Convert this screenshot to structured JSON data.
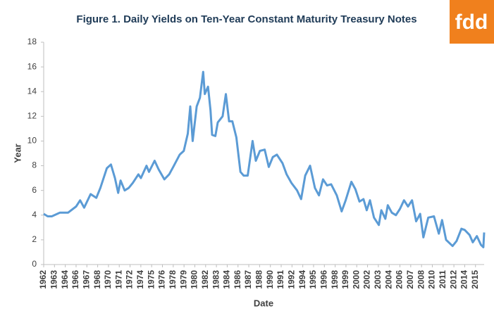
{
  "logo": "fdd",
  "chart_data": {
    "type": "line",
    "title": "Figure 1. Daily Yields  on Ten-Year Constant Maturity  Treasury Notes",
    "x_label": "Date",
    "y_label": "Year",
    "xlim": [
      1962,
      2016.4
    ],
    "ylim": [
      0,
      18
    ],
    "yticks": [
      0,
      2,
      4,
      6,
      8,
      10,
      12,
      14,
      16,
      18
    ],
    "xticks": [
      {
        "value": 1962,
        "label": "1962"
      },
      {
        "value": 1963.333,
        "label": "1963"
      },
      {
        "value": 1964.667,
        "label": "1964"
      },
      {
        "value": 1966,
        "label": "1966"
      },
      {
        "value": 1967.333,
        "label": "1967"
      },
      {
        "value": 1968.667,
        "label": "1968"
      },
      {
        "value": 1970,
        "label": "1970"
      },
      {
        "value": 1971.333,
        "label": "1971"
      },
      {
        "value": 1972.667,
        "label": "1972"
      },
      {
        "value": 1974,
        "label": "1974"
      },
      {
        "value": 1975.333,
        "label": "1975"
      },
      {
        "value": 1976.667,
        "label": "1976"
      },
      {
        "value": 1978,
        "label": "1978"
      },
      {
        "value": 1979.333,
        "label": "1979"
      },
      {
        "value": 1980.667,
        "label": "1980"
      },
      {
        "value": 1982,
        "label": "1982"
      },
      {
        "value": 1983.333,
        "label": "1983"
      },
      {
        "value": 1984.667,
        "label": "1984"
      },
      {
        "value": 1986,
        "label": "1986"
      },
      {
        "value": 1987.333,
        "label": "1987"
      },
      {
        "value": 1988.667,
        "label": "1988"
      },
      {
        "value": 1990,
        "label": "1990"
      },
      {
        "value": 1991.333,
        "label": "1991"
      },
      {
        "value": 1992.667,
        "label": "1992"
      },
      {
        "value": 1994,
        "label": "1994"
      },
      {
        "value": 1995.333,
        "label": "1995"
      },
      {
        "value": 1996.667,
        "label": "1996"
      },
      {
        "value": 1998,
        "label": "1998"
      },
      {
        "value": 1999.333,
        "label": "1999"
      },
      {
        "value": 2000.667,
        "label": "2000"
      },
      {
        "value": 2002,
        "label": "2002"
      },
      {
        "value": 2003.333,
        "label": "2003"
      },
      {
        "value": 2004.667,
        "label": "2004"
      },
      {
        "value": 2006,
        "label": "2006"
      },
      {
        "value": 2007.333,
        "label": "2007"
      },
      {
        "value": 2008.667,
        "label": "2008"
      },
      {
        "value": 2010,
        "label": "2010"
      },
      {
        "value": 2011.333,
        "label": "2011"
      },
      {
        "value": 2012.667,
        "label": "2012"
      },
      {
        "value": 2014,
        "label": "2014"
      },
      {
        "value": 2015.333,
        "label": "2015"
      }
    ],
    "grid": false,
    "color": "#5b9bd5",
    "x": [
      1962,
      1962.5,
      1963,
      1964,
      1965,
      1966,
      1966.5,
      1967,
      1967.8,
      1968.5,
      1969,
      1969.8,
      1970.3,
      1970.8,
      1971.2,
      1971.5,
      1972,
      1972.5,
      1973,
      1973.7,
      1974,
      1974.7,
      1975,
      1975.7,
      1976.2,
      1976.9,
      1977.5,
      1978,
      1978.8,
      1979.3,
      1979.8,
      1980.1,
      1980.4,
      1980.9,
      1981.3,
      1981.7,
      1981.9,
      1982.3,
      1982.6,
      1982.8,
      1983.2,
      1983.5,
      1984.1,
      1984.5,
      1984.9,
      1985.3,
      1985.8,
      1986.3,
      1986.7,
      1987.2,
      1987.8,
      1988.2,
      1988.7,
      1989.3,
      1989.8,
      1990.3,
      1990.8,
      1991.5,
      1992,
      1992.6,
      1993.3,
      1993.8,
      1994.3,
      1994.9,
      1995.5,
      1996,
      1996.5,
      1997,
      1997.5,
      1998.2,
      1998.8,
      1999.3,
      2000,
      2000.5,
      2001,
      2001.5,
      2001.9,
      2002.3,
      2002.8,
      2003.4,
      2003.7,
      2004.2,
      2004.5,
      2005,
      2005.5,
      2006,
      2006.5,
      2007,
      2007.5,
      2008,
      2008.5,
      2008.9,
      2009.5,
      2010.2,
      2010.8,
      2011.2,
      2011.7,
      2012.5,
      2013,
      2013.6,
      2014,
      2014.6,
      2015,
      2015.5,
      2016,
      2016.3,
      2016.4
    ],
    "values": [
      4.1,
      3.9,
      3.9,
      4.2,
      4.2,
      4.7,
      5.2,
      4.6,
      5.7,
      5.4,
      6.2,
      7.8,
      8.1,
      7.0,
      5.8,
      6.8,
      6.0,
      6.2,
      6.6,
      7.3,
      7.0,
      8.0,
      7.5,
      8.4,
      7.7,
      6.9,
      7.3,
      7.9,
      8.9,
      9.2,
      10.6,
      12.8,
      10.0,
      12.8,
      13.5,
      15.6,
      13.8,
      14.4,
      12.5,
      10.5,
      10.4,
      11.5,
      12.0,
      13.8,
      11.6,
      11.6,
      10.3,
      7.5,
      7.2,
      7.2,
      10.0,
      8.4,
      9.2,
      9.3,
      7.9,
      8.7,
      8.9,
      8.2,
      7.3,
      6.6,
      6.0,
      5.3,
      7.2,
      8.0,
      6.2,
      5.6,
      6.9,
      6.4,
      6.5,
      5.6,
      4.3,
      5.2,
      6.7,
      6.1,
      5.1,
      5.3,
      4.4,
      5.2,
      3.8,
      3.2,
      4.4,
      3.7,
      4.8,
      4.2,
      4.0,
      4.5,
      5.2,
      4.7,
      5.2,
      3.5,
      4.1,
      2.2,
      3.8,
      3.9,
      2.5,
      3.6,
      2.0,
      1.5,
      1.9,
      2.9,
      2.8,
      2.4,
      1.8,
      2.3,
      1.6,
      1.4,
      2.6
    ]
  }
}
